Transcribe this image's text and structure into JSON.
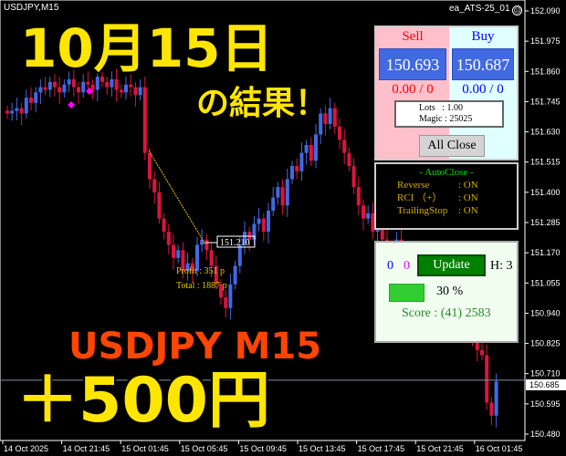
{
  "chart": {
    "symbol": "USDJPY,M15",
    "ea_name": "ea_ATS-25_01",
    "ea_status_icon": "sad-face-icon",
    "price_axis": [
      "152.090",
      "151.975",
      "151.860",
      "151.745",
      "151.630",
      "151.515",
      "151.400",
      "151.285",
      "151.170",
      "151.055",
      "150.940",
      "150.825",
      "150.710",
      "150.595",
      "150.480"
    ],
    "current_price": "150.685",
    "time_axis": [
      "14 Oct 2025",
      "14 Oct 21:45",
      "15 Oct 01:45",
      "15 Oct 05:45",
      "15 Oct 09:45",
      "15 Oct 13:45",
      "15 Oct 17:45",
      "15 Oct 21:45",
      "16 Oct 01:45"
    ],
    "price_path": [
      151.7,
      151.71,
      151.72,
      151.7,
      151.76,
      151.74,
      151.78,
      151.8,
      151.79,
      151.82,
      151.8,
      151.78,
      151.81,
      151.83,
      151.8,
      151.78,
      151.82,
      151.81,
      151.79,
      151.84,
      151.82,
      151.8,
      151.83,
      151.79,
      151.78,
      151.81,
      151.8,
      151.77,
      151.8,
      151.55,
      151.45,
      151.4,
      151.3,
      151.25,
      151.2,
      151.15,
      151.18,
      151.1,
      151.13,
      151.1,
      151.2,
      151.22,
      151.18,
      151.12,
      151.05,
      151.0,
      150.96,
      151.05,
      151.12,
      151.2,
      151.25,
      151.22,
      151.28,
      151.3,
      151.25,
      151.33,
      151.38,
      151.42,
      151.35,
      151.45,
      151.5,
      151.48,
      151.55,
      151.58,
      151.52,
      151.62,
      151.7,
      151.66,
      151.72,
      151.65,
      151.6,
      151.55,
      151.5,
      151.42,
      151.35,
      151.3,
      151.32,
      151.25,
      151.28,
      151.22,
      151.2,
      151.18,
      151.22,
      151.15,
      151.1,
      151.12,
      151.08,
      151.05,
      151.1,
      151.06,
      151.02,
      151.05,
      151.0,
      150.98,
      151.02,
      150.95,
      150.92,
      150.88,
      150.85,
      150.8,
      150.78,
      150.6,
      150.55,
      150.68
    ],
    "colors": {
      "up": "#4169e1",
      "down": "#dc143c",
      "grid": "#ffffff"
    },
    "annotation": {
      "trade_price": "151.210",
      "profit": "Profit : 351 p",
      "total": "Total : 1887 p"
    }
  },
  "overlay": {
    "date": "10月15日",
    "result": "の結果！",
    "pair": "USDJPY  M15",
    "gain": "＋500円"
  },
  "panel": {
    "sell_label": "Sell",
    "buy_label": "Buy",
    "sell_price": "150.693",
    "buy_price": "150.687",
    "sell_pl": "0.00 / 0",
    "buy_pl": "0.00 / 0",
    "lots": "Lots   : 1.00",
    "magic": "Magic : 25025",
    "all_close": "All Close"
  },
  "autoclose": {
    "title": "- AutoClose -",
    "rows": [
      {
        "k": "Reverse",
        "v": ": ON"
      },
      {
        "k": "RCI （+）",
        "v": ": ON"
      },
      {
        "k": "TrailingStop",
        "v": ": ON"
      }
    ]
  },
  "score": {
    "count_blue": "0",
    "count_magenta": "0",
    "update": "Update",
    "h": "H: 3",
    "progress": 30,
    "progress_label": "30 %",
    "score": "Score : (41) 2583"
  }
}
